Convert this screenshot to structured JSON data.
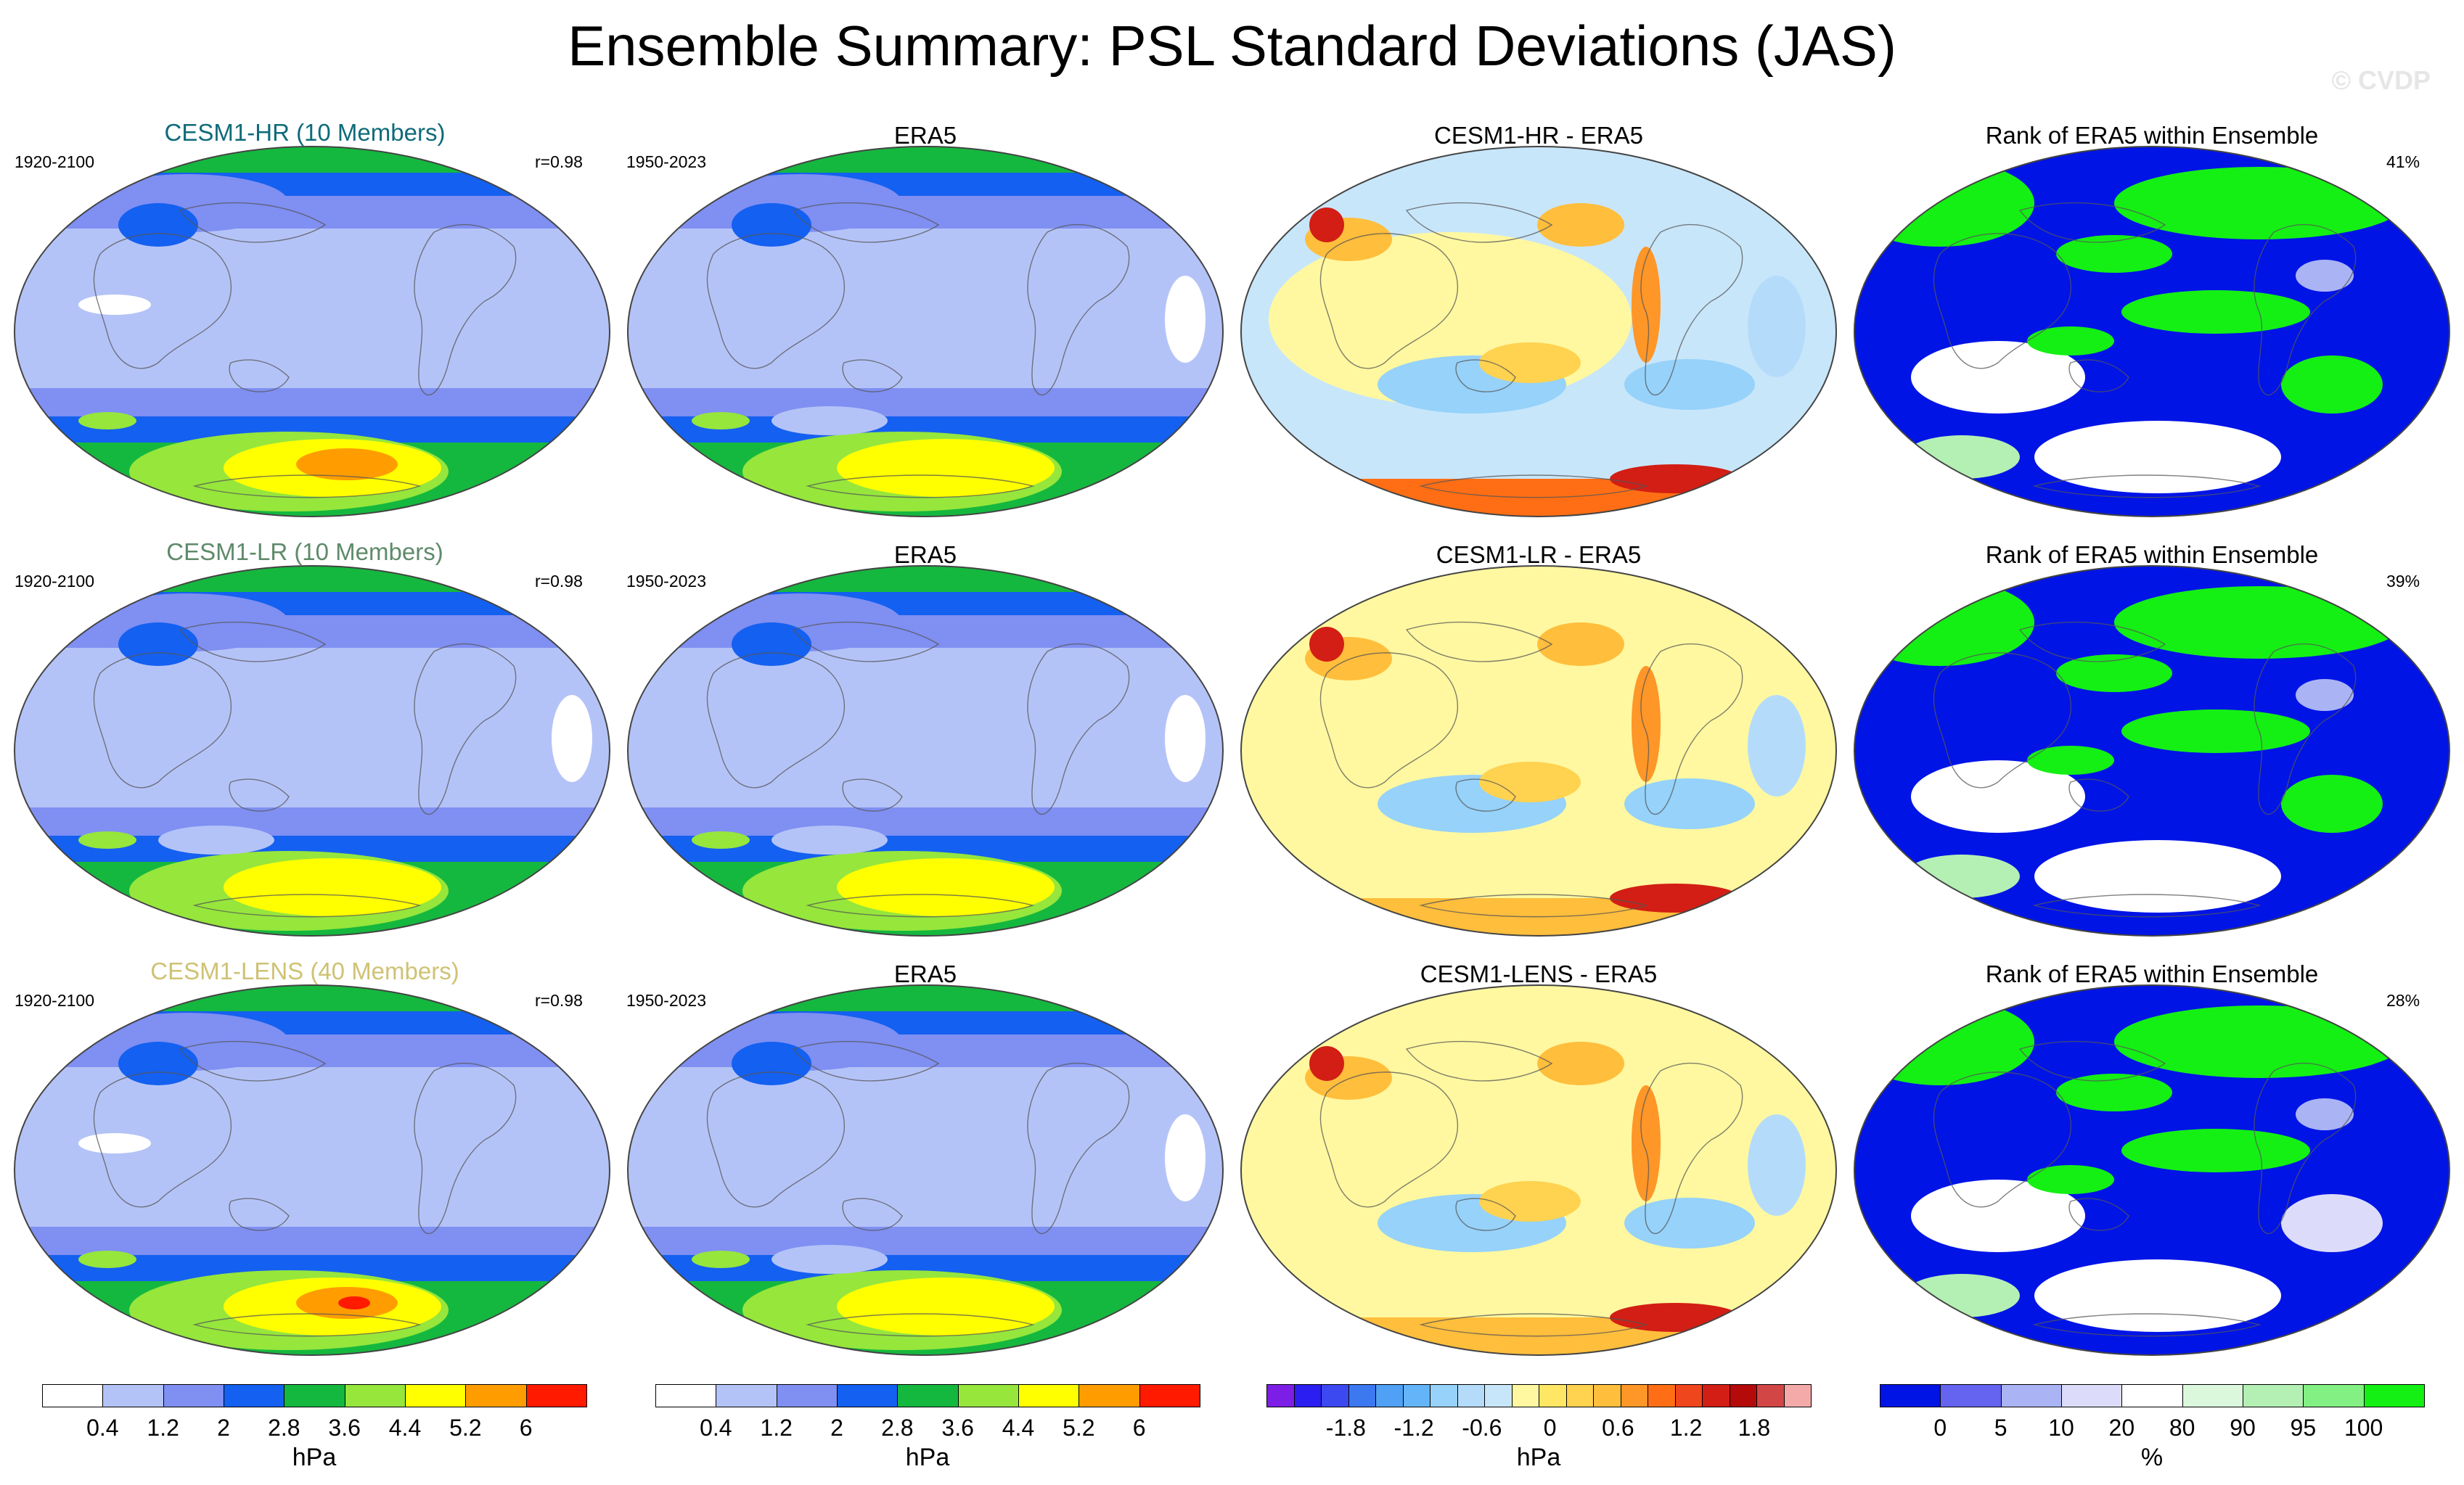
{
  "title": "Ensemble Summary: PSL Standard Deviations (JAS)",
  "watermark": "© CVDP",
  "chart_data": {
    "type": "map-panels",
    "rows": [
      {
        "model": {
          "title": "CESM1-HR (10 Members)",
          "title_color": "#0f6b7a",
          "period": "1920-2100",
          "pattern_corr": "r=0.98"
        },
        "obs": {
          "title": "ERA5",
          "period": "1950-2023"
        },
        "diff": {
          "title": "CESM1-HR - ERA5"
        },
        "rank": {
          "title": "Rank of ERA5 within Ensemble",
          "percent": "41%"
        }
      },
      {
        "model": {
          "title": "CESM1-LR (10 Members)",
          "title_color": "#5f8a6a",
          "period": "1920-2100",
          "pattern_corr": "r=0.98"
        },
        "obs": {
          "title": "ERA5",
          "period": "1950-2023"
        },
        "diff": {
          "title": "CESM1-LR - ERA5"
        },
        "rank": {
          "title": "Rank of ERA5 within Ensemble",
          "percent": "39%"
        }
      },
      {
        "model": {
          "title": "CESM1-LENS (40 Members)",
          "title_color": "#cfc274",
          "period": "1920-2100",
          "pattern_corr": "r=0.98"
        },
        "obs": {
          "title": "ERA5",
          "period": "1950-2023"
        },
        "diff": {
          "title": "CESM1-LENS - ERA5"
        },
        "rank": {
          "title": "Rank of ERA5 within Ensemble",
          "percent": "28%"
        }
      }
    ],
    "colorbars": [
      {
        "name": "stddev-model",
        "unit": "hPa",
        "colors": [
          "#ffffff",
          "#b4c3f7",
          "#7f8ff2",
          "#1460f0",
          "#15b83e",
          "#96e63c",
          "#ffff00",
          "#ff9d00",
          "#ff1a00"
        ],
        "labels": [
          "0.4",
          "1.2",
          "2",
          "2.8",
          "3.6",
          "4.4",
          "5.2",
          "6"
        ]
      },
      {
        "name": "stddev-obs",
        "unit": "hPa",
        "colors": [
          "#ffffff",
          "#b4c3f7",
          "#7f8ff2",
          "#1460f0",
          "#15b83e",
          "#96e63c",
          "#ffff00",
          "#ff9d00",
          "#ff1a00"
        ],
        "labels": [
          "0.4",
          "1.2",
          "2",
          "2.8",
          "3.6",
          "4.4",
          "5.2",
          "6"
        ]
      },
      {
        "name": "difference",
        "unit": "hPa",
        "colors": [
          "#7d1ee6",
          "#2b1ef0",
          "#3c48f0",
          "#3c78f0",
          "#50a0f5",
          "#64b4fa",
          "#96d2fa",
          "#b4dcfa",
          "#c8e6fa",
          "#fff8a0",
          "#ffe664",
          "#ffd250",
          "#ffbe3c",
          "#ff9628",
          "#ff6e14",
          "#f0461e",
          "#d21e14",
          "#b40a0a",
          "#d24646",
          "#f5aaaa"
        ],
        "labels": [
          "-1.8",
          "-1.2",
          "-0.6",
          "0",
          "0.6",
          "1.2",
          "1.8"
        ]
      },
      {
        "name": "rank",
        "unit": "%",
        "colors": [
          "#0014e6",
          "#6464f0",
          "#aab4f5",
          "#dcdcfa",
          "#ffffff",
          "#dcf8dc",
          "#b4f0b4",
          "#82f082",
          "#14f014"
        ],
        "labels": [
          "0",
          "5",
          "10",
          "20",
          "80",
          "90",
          "95",
          "100"
        ]
      }
    ]
  }
}
